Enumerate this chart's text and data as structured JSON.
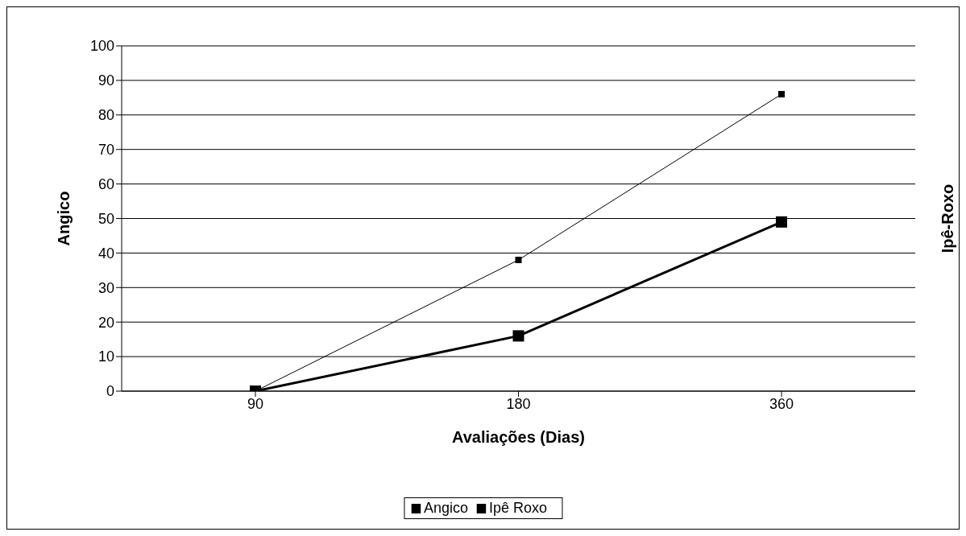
{
  "chart_data": {
    "type": "line",
    "xlabel": "Avaliações (Dias)",
    "ylabel": "Angico",
    "y2label": "Ipê-Roxo",
    "categories": [
      "90",
      "180",
      "360"
    ],
    "series": [
      {
        "name": "Angico",
        "color": "#000000",
        "values": [
          0,
          16,
          49
        ]
      },
      {
        "name": "Ipê Roxo",
        "color": "#000000",
        "values": [
          0,
          38,
          86
        ]
      }
    ],
    "ylim": [
      0,
      100
    ],
    "yticks": [
      0,
      10,
      20,
      30,
      40,
      50,
      60,
      70,
      80,
      90,
      100
    ],
    "grid": "y",
    "legend": "bottom",
    "marker": "square",
    "line_style": "solid"
  }
}
